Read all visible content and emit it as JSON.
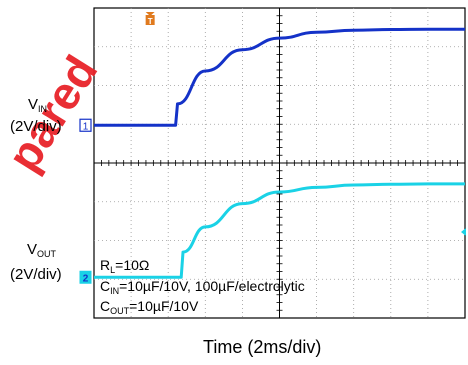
{
  "watermark": "pared",
  "chart_data": {
    "type": "line",
    "title": "",
    "xlabel": "Time (2ms/div)",
    "series": [
      {
        "channel_marker": "1",
        "label_main": "V",
        "label_sub": "IN",
        "scale": "(2V/div)",
        "color": "#1432c8",
        "x_div": [
          0.0,
          2.2,
          2.25,
          3.0,
          4.0,
          5.0,
          6.0,
          7.0,
          8.0,
          9.0,
          10.0
        ],
        "y_div_above_ref": [
          0.0,
          0.0,
          0.55,
          1.4,
          1.95,
          2.25,
          2.4,
          2.45,
          2.47,
          2.48,
          2.48
        ]
      },
      {
        "channel_marker": "2",
        "label_main": "V",
        "label_sub": "OUT",
        "scale": "(2V/div)",
        "color": "#1ad2e6",
        "x_div": [
          0.0,
          2.35,
          2.4,
          3.0,
          4.0,
          5.0,
          6.0,
          7.0,
          8.0,
          9.0,
          10.0
        ],
        "y_div_above_ref": [
          0.0,
          0.0,
          0.65,
          1.3,
          1.9,
          2.2,
          2.32,
          2.38,
          2.4,
          2.41,
          2.41
        ]
      }
    ],
    "trigger_marker": "T",
    "trigger_color": "#e07a1e",
    "annotations": {
      "rl": {
        "main": "R",
        "sub": "L",
        "rest": "=10Ω"
      },
      "cin": {
        "main": "C",
        "sub": "IN",
        "rest": "=10µF/10V, 100µF/electrolytic"
      },
      "cout": {
        "main": "C",
        "sub": "OUT",
        "rest": "=10µF/10V"
      }
    }
  }
}
